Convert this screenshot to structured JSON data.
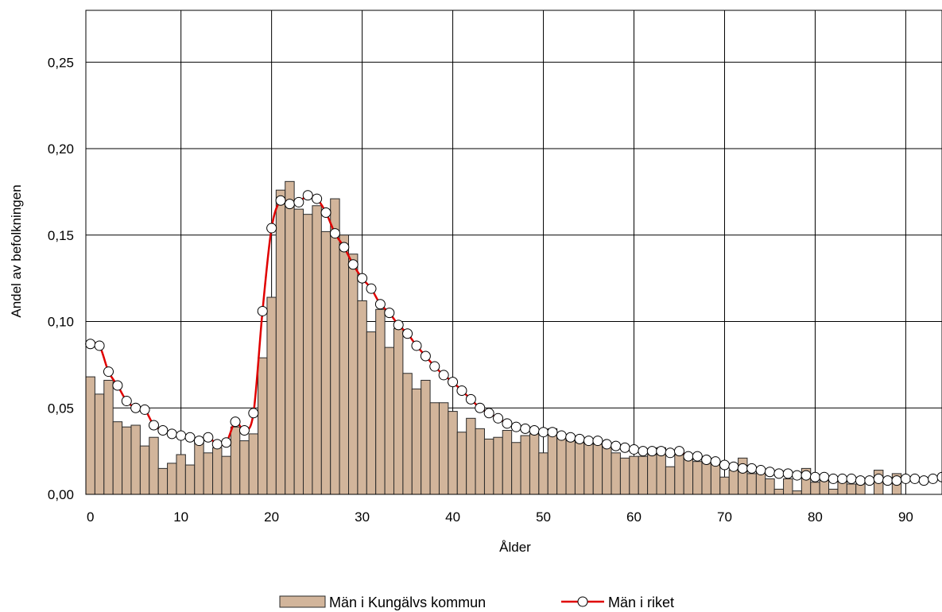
{
  "chart_data": {
    "type": "bar+line",
    "xlabel": "Ålder",
    "ylabel": "Andel av befolkningen",
    "xlim": [
      0,
      94
    ],
    "ylim": [
      0,
      0.28
    ],
    "xticks": [
      0,
      10,
      20,
      30,
      40,
      50,
      60,
      70,
      80,
      90
    ],
    "yticks": [
      0,
      0.05,
      0.1,
      0.15,
      0.2,
      0.25
    ],
    "ytick_labels": [
      "0,00",
      "0,05",
      "0,10",
      "0,15",
      "0,20",
      "0,25"
    ],
    "grid": true,
    "legend_position": "bottom-center",
    "bar_series": {
      "name": "Män i Kungälvs kommun",
      "color": "#d2b59b",
      "x": [
        0,
        1,
        2,
        3,
        4,
        5,
        6,
        7,
        8,
        9,
        10,
        11,
        12,
        13,
        14,
        15,
        16,
        17,
        18,
        19,
        20,
        21,
        22,
        23,
        24,
        25,
        26,
        27,
        28,
        29,
        30,
        31,
        32,
        33,
        34,
        35,
        36,
        37,
        38,
        39,
        40,
        41,
        42,
        43,
        44,
        45,
        46,
        47,
        48,
        49,
        50,
        51,
        52,
        53,
        54,
        55,
        56,
        57,
        58,
        59,
        60,
        61,
        62,
        63,
        64,
        65,
        66,
        67,
        68,
        69,
        70,
        71,
        72,
        73,
        74,
        75,
        76,
        77,
        78,
        79,
        80,
        81,
        82,
        83,
        84,
        85,
        86,
        87,
        88,
        89
      ],
      "values": [
        0.068,
        0.058,
        0.066,
        0.042,
        0.039,
        0.04,
        0.028,
        0.033,
        0.015,
        0.018,
        0.023,
        0.017,
        0.03,
        0.024,
        0.027,
        0.022,
        0.039,
        0.031,
        0.035,
        0.079,
        0.114,
        0.176,
        0.181,
        0.165,
        0.162,
        0.167,
        0.152,
        0.171,
        0.15,
        0.139,
        0.112,
        0.094,
        0.107,
        0.085,
        0.096,
        0.07,
        0.061,
        0.066,
        0.053,
        0.053,
        0.048,
        0.036,
        0.044,
        0.038,
        0.032,
        0.033,
        0.037,
        0.03,
        0.034,
        0.035,
        0.024,
        0.038,
        0.033,
        0.031,
        0.03,
        0.032,
        0.029,
        0.029,
        0.024,
        0.021,
        0.022,
        0.022,
        0.023,
        0.027,
        0.016,
        0.023,
        0.022,
        0.019,
        0.02,
        0.019,
        0.01,
        0.014,
        0.021,
        0.012,
        0.013,
        0.009,
        0.003,
        0.009,
        0.002,
        0.015,
        0.007,
        0.008,
        0.003,
        0.008,
        0.006,
        0.006,
        0.0,
        0.014,
        0.0,
        0.012
      ]
    },
    "line_series": {
      "name": "Män i riket",
      "color": "#e00000",
      "x": [
        0,
        1,
        2,
        3,
        4,
        5,
        6,
        7,
        8,
        9,
        10,
        11,
        12,
        13,
        14,
        15,
        16,
        17,
        18,
        19,
        20,
        21,
        22,
        23,
        24,
        25,
        26,
        27,
        28,
        29,
        30,
        31,
        32,
        33,
        34,
        35,
        36,
        37,
        38,
        39,
        40,
        41,
        42,
        43,
        44,
        45,
        46,
        47,
        48,
        49,
        50,
        51,
        52,
        53,
        54,
        55,
        56,
        57,
        58,
        59,
        60,
        61,
        62,
        63,
        64,
        65,
        66,
        67,
        68,
        69,
        70,
        71,
        72,
        73,
        74,
        75,
        76,
        77,
        78,
        79,
        80,
        81,
        82,
        83,
        84,
        85,
        86,
        87,
        88,
        89,
        90,
        91,
        92,
        93,
        94
      ],
      "values": [
        0.087,
        0.086,
        0.071,
        0.063,
        0.054,
        0.05,
        0.049,
        0.04,
        0.037,
        0.035,
        0.034,
        0.033,
        0.031,
        0.033,
        0.029,
        0.03,
        0.042,
        0.037,
        0.047,
        0.106,
        0.154,
        0.17,
        0.168,
        0.169,
        0.173,
        0.171,
        0.163,
        0.151,
        0.143,
        0.133,
        0.125,
        0.119,
        0.11,
        0.105,
        0.098,
        0.093,
        0.086,
        0.08,
        0.074,
        0.069,
        0.065,
        0.06,
        0.055,
        0.05,
        0.047,
        0.044,
        0.041,
        0.039,
        0.038,
        0.037,
        0.036,
        0.036,
        0.034,
        0.033,
        0.032,
        0.031,
        0.031,
        0.029,
        0.028,
        0.027,
        0.026,
        0.025,
        0.025,
        0.025,
        0.024,
        0.025,
        0.022,
        0.022,
        0.02,
        0.019,
        0.017,
        0.016,
        0.015,
        0.015,
        0.014,
        0.013,
        0.012,
        0.012,
        0.011,
        0.011,
        0.01,
        0.01,
        0.009,
        0.009,
        0.009,
        0.008,
        0.008,
        0.009,
        0.008,
        0.008,
        0.009,
        0.009,
        0.008,
        0.009,
        0.01
      ]
    }
  }
}
